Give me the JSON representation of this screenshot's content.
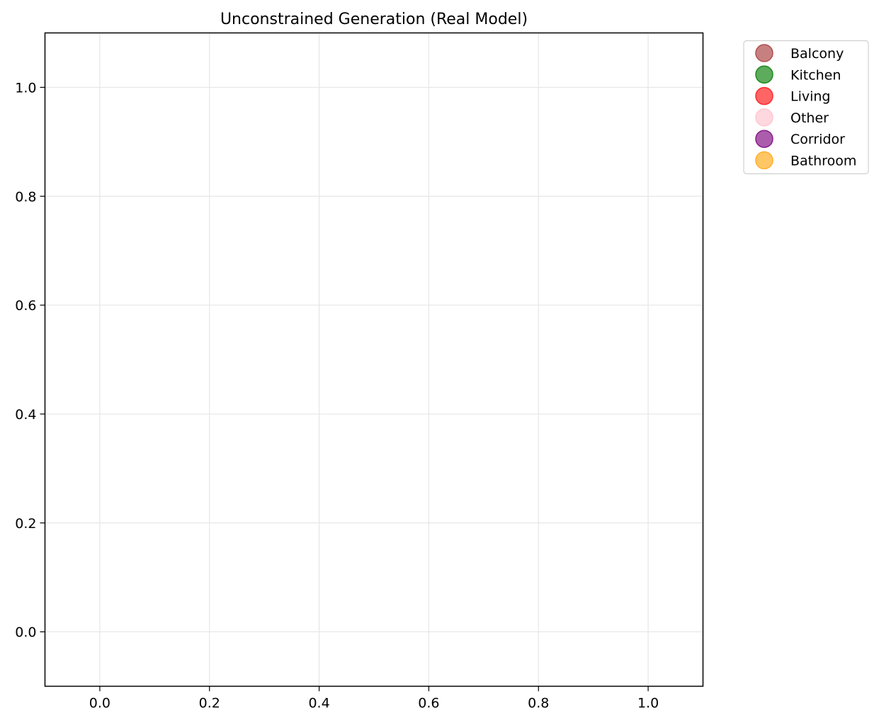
{
  "chart_data": {
    "type": "scatter",
    "title": "Unconstrained Generation (Real Model)",
    "xlabel": "",
    "ylabel": "",
    "xlim": [
      -0.1,
      1.1
    ],
    "ylim": [
      -0.1,
      1.1
    ],
    "x_ticks": [
      0.0,
      0.2,
      0.4,
      0.6,
      0.8,
      1.0
    ],
    "y_ticks": [
      0.0,
      0.2,
      0.4,
      0.6,
      0.8,
      1.0
    ],
    "x_tick_labels": [
      "0.0",
      "0.2",
      "0.4",
      "0.6",
      "0.8",
      "1.0"
    ],
    "y_tick_labels": [
      "0.0",
      "0.2",
      "0.4",
      "0.6",
      "0.8",
      "1.0"
    ],
    "grid": true,
    "legend_placement": "outside-top-right",
    "series": [
      {
        "name": "Balcony",
        "color": "#b24f4f",
        "points": []
      },
      {
        "name": "Kitchen",
        "color": "#1e8a1e",
        "points": []
      },
      {
        "name": "Living",
        "color": "#ff2a2a",
        "points": []
      },
      {
        "name": "Other",
        "color": "#ffc8d2",
        "points": []
      },
      {
        "name": "Corridor",
        "color": "#8a1e8a",
        "points": []
      },
      {
        "name": "Bathroom",
        "color": "#ffb02a",
        "points": []
      }
    ]
  }
}
